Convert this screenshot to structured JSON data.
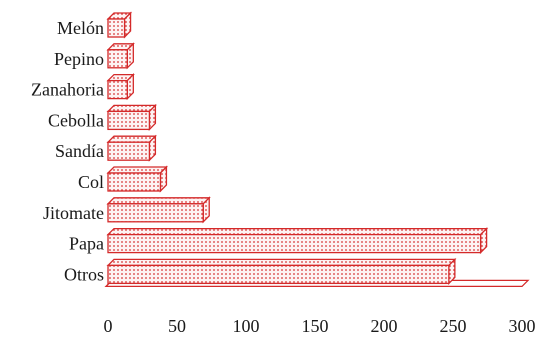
{
  "chart_data": {
    "type": "bar",
    "orientation": "horizontal",
    "style": "3d-dotted",
    "categories": [
      "Melón",
      "Pepino",
      "Zanahoria",
      "Cebolla",
      "Sandía",
      "Col",
      "Jitomate",
      "Papa",
      "Otros"
    ],
    "values": [
      12,
      14,
      14,
      30,
      30,
      38,
      69,
      270,
      247
    ],
    "xlim": [
      0,
      300
    ],
    "xticks": [
      "0",
      "50",
      "100",
      "150",
      "200",
      "250",
      "300"
    ],
    "title": "",
    "xlabel": "",
    "ylabel": "",
    "grid": false,
    "legend": "none",
    "colors": {
      "bar_edge": "#d42a2a",
      "bar_fill": "#fdf3f3",
      "bar_dots": "#d42a2a",
      "text": "#1a1a1a"
    }
  }
}
